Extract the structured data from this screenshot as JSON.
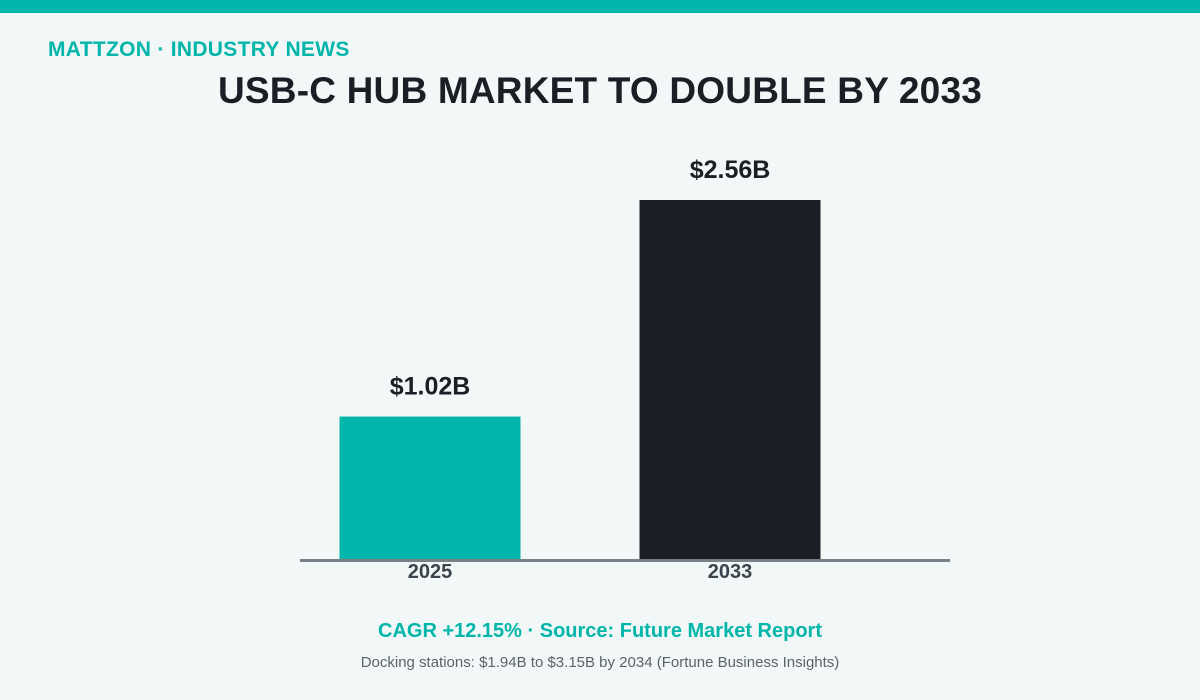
{
  "header": {
    "kicker": "MATTZON  ·  INDUSTRY NEWS",
    "title": "USB-C HUB MARKET TO DOUBLE BY 2033"
  },
  "colors": {
    "accent": "#00b5aa",
    "dark": "#1a1f26",
    "axis": "#7a8088",
    "tick": "#3d434a",
    "background": "#f2f8f8"
  },
  "chart_data": {
    "type": "bar",
    "categories": [
      "2025",
      "2033"
    ],
    "values": [
      1.02,
      2.56
    ],
    "value_labels": [
      "$1.02B",
      "$2.56B"
    ],
    "bar_colors": [
      "#00b5aa",
      "#1a1f26"
    ],
    "ylim": [
      0,
      2.56
    ],
    "grid": false,
    "legend": "none"
  },
  "footer": {
    "main": "CAGR +12.15%  ·  Source: Future Market Report",
    "sub": "Docking stations: $1.94B to $3.15B by 2034 (Fortune Business Insights)"
  }
}
